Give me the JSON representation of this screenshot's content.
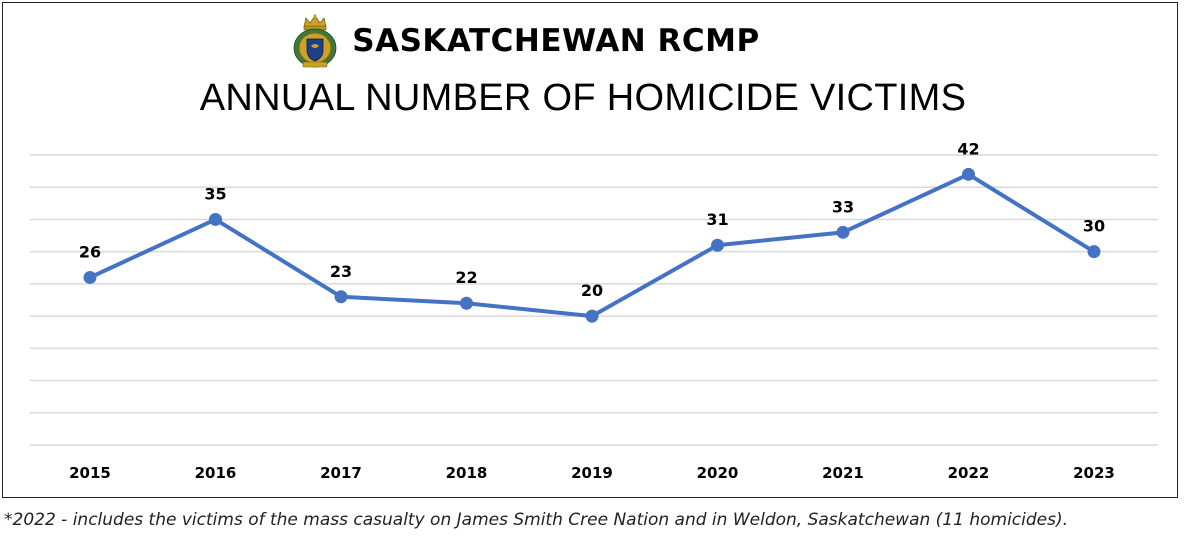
{
  "header": {
    "org_title": "SASKATCHEWAN RCMP",
    "subtitle": "ANNUAL NUMBER OF HOMICIDE VICTIMS",
    "crest_icon": "rcmp-crest-icon"
  },
  "footnote": "*2022 - includes the victims of the mass casualty on James Smith Cree Nation and in Weldon, Saskatchewan (11 homicides).",
  "colors": {
    "line": "#4472C4",
    "grid": "#d9d9d9",
    "text": "#000000"
  },
  "chart_data": {
    "type": "line",
    "title": "ANNUAL NUMBER OF HOMICIDE VICTIMS",
    "categories": [
      "2015",
      "2016",
      "2017",
      "2018",
      "2019",
      "2020",
      "2021",
      "2022",
      "2023"
    ],
    "series": [
      {
        "values": [
          26,
          35,
          23,
          22,
          20,
          31,
          33,
          42,
          30
        ]
      }
    ],
    "data_labels": [
      "26",
      "35",
      "23",
      "22",
      "20",
      "31",
      "33",
      "42",
      "30"
    ],
    "ylim": [
      0,
      45
    ],
    "grid": true,
    "legend": "none",
    "xlabel": "",
    "ylabel": ""
  }
}
